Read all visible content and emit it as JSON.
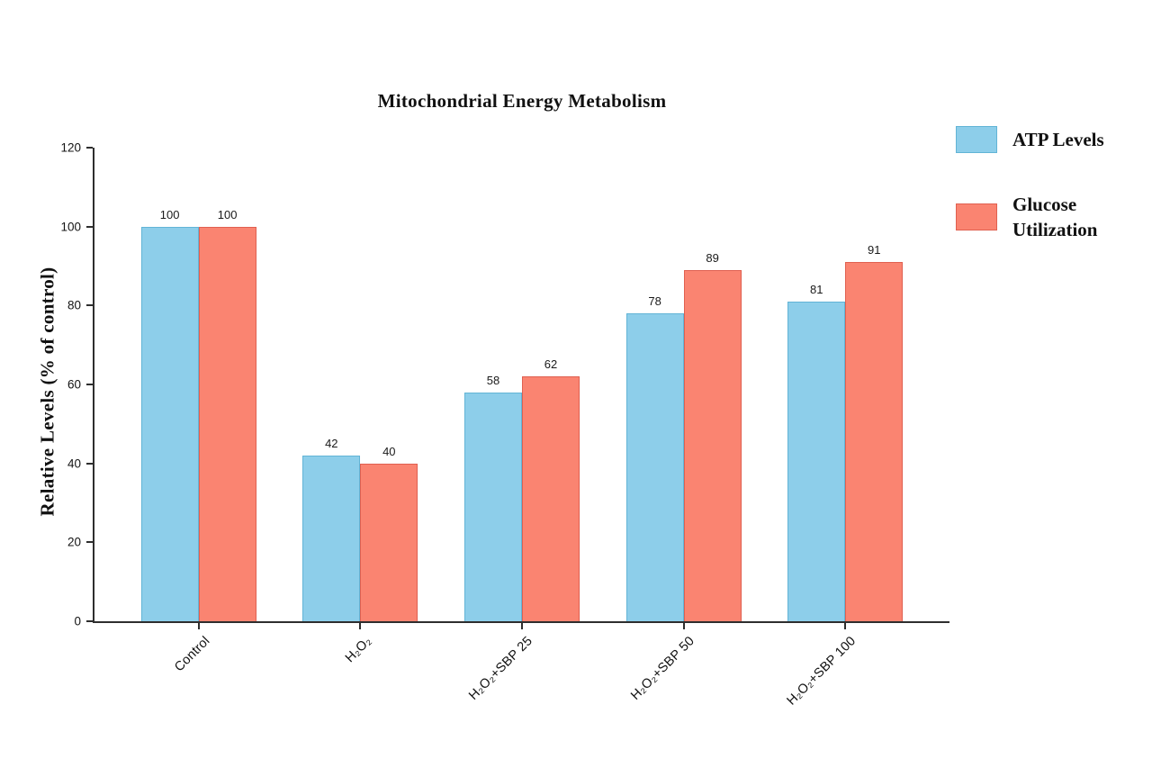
{
  "figure": {
    "background": "#ffffff",
    "axis_color": "#2e2e2e",
    "text_color": "#111111"
  },
  "chart_data": {
    "type": "bar",
    "title": "Mitochondrial Energy Metabolism",
    "xlabel": "",
    "ylabel": "Relative Levels (% of control)",
    "ylim": [
      0,
      120
    ],
    "yticks": [
      0,
      20,
      40,
      60,
      80,
      100,
      120
    ],
    "grid": false,
    "bar_labels": true,
    "legend_position": "top-right",
    "categories": [
      "Control",
      "H₂O₂",
      "H₂O₂+SBP 25",
      "H₂O₂+SBP 50",
      "H₂O₂+SBP 100"
    ],
    "series": [
      {
        "key": "atp",
        "name": "ATP Levels",
        "color": "#8DCEEA",
        "border_color": "#62B4D6",
        "values": [
          100,
          42,
          58,
          78,
          81
        ]
      },
      {
        "key": "glucose",
        "name": "Glucose Utilization",
        "color": "#FA8471",
        "border_color": "#E06050",
        "values": [
          100,
          40,
          62,
          89,
          91
        ]
      }
    ]
  }
}
